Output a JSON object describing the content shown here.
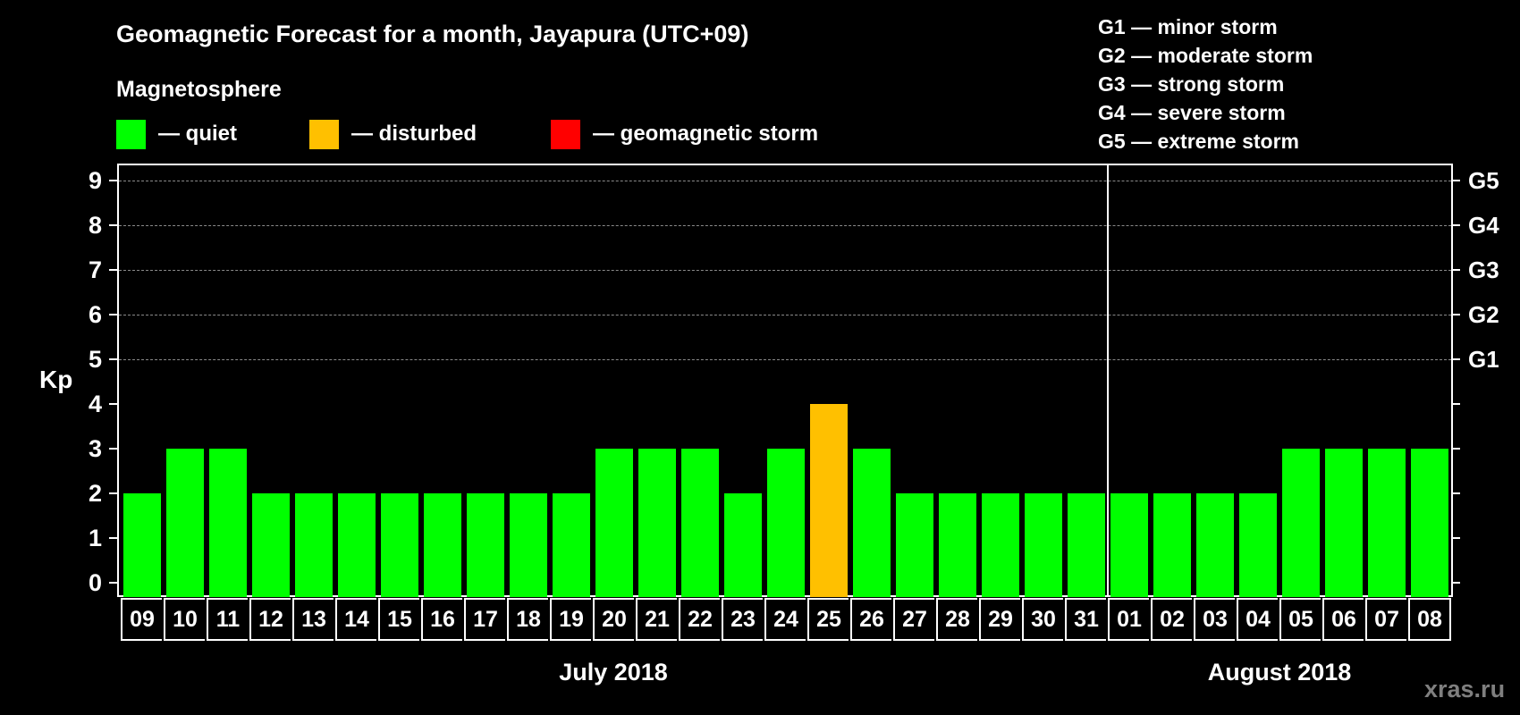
{
  "header": {
    "title": "Geomagnetic Forecast for a month, Jayapura (UTC+09)",
    "subtitle": "Magnetosphere"
  },
  "legend": [
    {
      "label": "— quiet",
      "color": "#00ff00"
    },
    {
      "label": "— disturbed",
      "color": "#ffc000"
    },
    {
      "label": "— geomagnetic storm",
      "color": "#ff0000"
    }
  ],
  "storm_scale": [
    {
      "label": "G1 — minor storm"
    },
    {
      "label": "G2 — moderate storm"
    },
    {
      "label": "G3 — strong storm"
    },
    {
      "label": "G4 — severe storm"
    },
    {
      "label": "G5 — extreme storm"
    }
  ],
  "axes": {
    "y_label": "Kp",
    "y_ticks": [
      "0",
      "1",
      "2",
      "3",
      "4",
      "5",
      "6",
      "7",
      "8",
      "9"
    ],
    "right_ticks": [
      {
        "kp": 5,
        "label": "G1"
      },
      {
        "kp": 6,
        "label": "G2"
      },
      {
        "kp": 7,
        "label": "G3"
      },
      {
        "kp": 8,
        "label": "G4"
      },
      {
        "kp": 9,
        "label": "G5"
      }
    ],
    "months": [
      {
        "label": "July 2018"
      },
      {
        "label": "August 2018"
      }
    ]
  },
  "watermark": "xras.ru",
  "chart_data": {
    "type": "bar",
    "title": "Geomagnetic Forecast for a month, Jayapura (UTC+09)",
    "subtitle": "Magnetosphere",
    "xlabel": "July 2018 / August 2018",
    "ylabel": "Kp",
    "ylim": [
      0,
      9
    ],
    "grid": "dashed horizontal at Kp 5-9",
    "categories": [
      "09",
      "10",
      "11",
      "12",
      "13",
      "14",
      "15",
      "16",
      "17",
      "18",
      "19",
      "20",
      "21",
      "22",
      "23",
      "24",
      "25",
      "26",
      "27",
      "28",
      "29",
      "30",
      "31",
      "01",
      "02",
      "03",
      "04",
      "05",
      "06",
      "07",
      "08"
    ],
    "values": [
      2,
      3,
      3,
      2,
      2,
      2,
      2,
      2,
      2,
      2,
      2,
      3,
      3,
      3,
      2,
      3,
      4,
      3,
      2,
      2,
      2,
      2,
      2,
      2,
      2,
      2,
      2,
      3,
      3,
      3,
      3
    ],
    "status": [
      "quiet",
      "quiet",
      "quiet",
      "quiet",
      "quiet",
      "quiet",
      "quiet",
      "quiet",
      "quiet",
      "quiet",
      "quiet",
      "quiet",
      "quiet",
      "quiet",
      "quiet",
      "quiet",
      "disturbed",
      "quiet",
      "quiet",
      "quiet",
      "quiet",
      "quiet",
      "quiet",
      "quiet",
      "quiet",
      "quiet",
      "quiet",
      "quiet",
      "quiet",
      "quiet",
      "quiet"
    ],
    "month_split_index": 23,
    "legend": {
      "quiet": "#00ff00",
      "disturbed": "#ffc000",
      "geomagnetic storm": "#ff0000"
    },
    "right_axis": {
      "5": "G1",
      "6": "G2",
      "7": "G3",
      "8": "G4",
      "9": "G5"
    }
  }
}
